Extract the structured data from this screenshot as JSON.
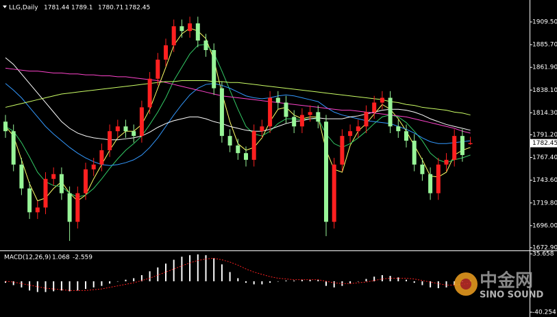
{
  "chart_data": [
    {
      "type": "candlestick",
      "title": "LLG,Daily",
      "up_color": "#ff2020",
      "down_color": "#98f598",
      "open": [
        1805,
        1795,
        1760,
        1735,
        1710,
        1715,
        1745,
        1750,
        1730,
        1700,
        1730,
        1755,
        1760,
        1775,
        1795,
        1800,
        1795,
        1790,
        1820,
        1850,
        1870,
        1885,
        1905,
        1900,
        1908,
        1890,
        1880,
        1840,
        1790,
        1780,
        1772,
        1765,
        1795,
        1800,
        1830,
        1825,
        1810,
        1800,
        1812,
        1815,
        1805,
        1700,
        1760,
        1790,
        1795,
        1800,
        1815,
        1825,
        1830,
        1800,
        1795,
        1785,
        1760,
        1750,
        1730,
        1760,
        1765,
        1790,
        1781.44
      ],
      "high": [
        1812,
        1802,
        1767,
        1742,
        1722,
        1752,
        1757,
        1757,
        1737,
        1737,
        1762,
        1767,
        1782,
        1802,
        1807,
        1807,
        1802,
        1827,
        1857,
        1877,
        1892,
        1912,
        1912,
        1915,
        1915,
        1897,
        1887,
        1847,
        1797,
        1787,
        1779,
        1802,
        1807,
        1837,
        1837,
        1832,
        1817,
        1819,
        1822,
        1822,
        1812,
        1767,
        1797,
        1802,
        1807,
        1822,
        1832,
        1837,
        1837,
        1807,
        1802,
        1792,
        1767,
        1757,
        1767,
        1772,
        1797,
        1797,
        1789.1
      ],
      "low": [
        1788,
        1753,
        1728,
        1703,
        1703,
        1708,
        1738,
        1723,
        1680,
        1693,
        1723,
        1748,
        1753,
        1768,
        1788,
        1788,
        1783,
        1783,
        1813,
        1843,
        1863,
        1878,
        1893,
        1893,
        1883,
        1873,
        1833,
        1783,
        1773,
        1765,
        1758,
        1758,
        1788,
        1793,
        1818,
        1803,
        1793,
        1793,
        1805,
        1798,
        1685,
        1693,
        1753,
        1783,
        1788,
        1793,
        1808,
        1818,
        1793,
        1788,
        1778,
        1753,
        1743,
        1723,
        1723,
        1753,
        1758,
        1763,
        1780.71
      ],
      "close": [
        1795,
        1760,
        1735,
        1710,
        1715,
        1745,
        1750,
        1730,
        1700,
        1730,
        1755,
        1760,
        1775,
        1795,
        1800,
        1795,
        1790,
        1820,
        1850,
        1870,
        1885,
        1905,
        1900,
        1908,
        1890,
        1880,
        1840,
        1790,
        1780,
        1772,
        1765,
        1795,
        1800,
        1830,
        1825,
        1810,
        1800,
        1812,
        1815,
        1805,
        1700,
        1760,
        1790,
        1795,
        1800,
        1815,
        1825,
        1830,
        1800,
        1795,
        1785,
        1760,
        1750,
        1730,
        1760,
        1765,
        1790,
        1770,
        1782.45
      ],
      "overlays": [
        {
          "color": "#ffff66",
          "values": [
            1800,
            1790,
            1765,
            1740,
            1722,
            1725,
            1735,
            1742,
            1730,
            1722,
            1728,
            1745,
            1760,
            1775,
            1788,
            1795,
            1795,
            1802,
            1818,
            1840,
            1862,
            1885,
            1897,
            1903,
            1900,
            1892,
            1870,
            1835,
            1805,
            1782,
            1775,
            1778,
            1788,
            1805,
            1818,
            1820,
            1812,
            1808,
            1810,
            1810,
            1775,
            1755,
            1752,
            1780,
            1795,
            1803,
            1813,
            1823,
            1818,
            1808,
            1795,
            1780,
            1765,
            1748,
            1747,
            1752,
            1770,
            1775,
            1778
          ]
        },
        {
          "color": "#33cc66",
          "values": [
            1800,
            1795,
            1783,
            1768,
            1752,
            1742,
            1738,
            1737,
            1730,
            1726,
            1728,
            1735,
            1745,
            1756,
            1766,
            1775,
            1782,
            1790,
            1802,
            1815,
            1830,
            1848,
            1862,
            1876,
            1885,
            1886,
            1877,
            1858,
            1838,
            1818,
            1800,
            1792,
            1790,
            1795,
            1803,
            1808,
            1808,
            1807,
            1808,
            1808,
            1792,
            1782,
            1778,
            1782,
            1788,
            1795,
            1803,
            1810,
            1812,
            1810,
            1804,
            1795,
            1785,
            1772,
            1765,
            1762,
            1765,
            1767,
            1770
          ]
        },
        {
          "color": "#3399ff",
          "values": [
            1845,
            1838,
            1830,
            1820,
            1810,
            1800,
            1792,
            1785,
            1778,
            1772,
            1767,
            1763,
            1760,
            1759,
            1760,
            1762,
            1765,
            1770,
            1778,
            1788,
            1800,
            1812,
            1823,
            1833,
            1840,
            1844,
            1845,
            1843,
            1840,
            1836,
            1832,
            1830,
            1829,
            1830,
            1832,
            1833,
            1832,
            1830,
            1828,
            1826,
            1820,
            1815,
            1812,
            1810,
            1808,
            1806,
            1805,
            1804,
            1803,
            1800,
            1797,
            1793,
            1788,
            1784,
            1782,
            1782,
            1783,
            1784,
            1785
          ]
        },
        {
          "color": "#ffffff",
          "values": [
            1872,
            1865,
            1855,
            1845,
            1835,
            1825,
            1815,
            1805,
            1798,
            1793,
            1790,
            1788,
            1787,
            1786,
            1786,
            1787,
            1788,
            1790,
            1794,
            1799,
            1803,
            1806,
            1808,
            1810,
            1810,
            1808,
            1805,
            1803,
            1800,
            1798,
            1796,
            1795,
            1795,
            1797,
            1800,
            1803,
            1805,
            1806,
            1808,
            1809,
            1808,
            1808,
            1808,
            1810,
            1811,
            1813,
            1815,
            1817,
            1818,
            1818,
            1817,
            1815,
            1812,
            1808,
            1805,
            1802,
            1800,
            1798,
            1796
          ]
        },
        {
          "color": "#ff44cc",
          "values": [
            1861,
            1860,
            1859,
            1858,
            1858,
            1857,
            1856,
            1856,
            1855,
            1855,
            1854,
            1854,
            1853,
            1853,
            1852,
            1852,
            1851,
            1850,
            1849,
            1848,
            1846,
            1844,
            1842,
            1840,
            1838,
            1836,
            1834,
            1832,
            1831,
            1830,
            1829,
            1828,
            1827,
            1826,
            1825,
            1824,
            1823,
            1822,
            1821,
            1820,
            1819,
            1818,
            1817,
            1817,
            1816,
            1815,
            1814,
            1813,
            1812,
            1811,
            1810,
            1808,
            1806,
            1804,
            1802,
            1800,
            1798,
            1795,
            1793
          ]
        },
        {
          "color": "#ccff66",
          "values": [
            1820,
            1822,
            1824,
            1826,
            1828,
            1830,
            1832,
            1834,
            1835,
            1836,
            1837,
            1838,
            1839,
            1840,
            1841,
            1842,
            1843,
            1844,
            1845,
            1846,
            1847,
            1847,
            1848,
            1848,
            1848,
            1848,
            1847,
            1847,
            1846,
            1846,
            1845,
            1844,
            1843,
            1842,
            1841,
            1840,
            1839,
            1838,
            1837,
            1836,
            1835,
            1834,
            1833,
            1832,
            1831,
            1830,
            1829,
            1828,
            1826,
            1825,
            1823,
            1822,
            1820,
            1819,
            1818,
            1817,
            1815,
            1814,
            1812
          ]
        }
      ],
      "ylim": [
        1670.0,
        1932.5
      ],
      "yticks": [
        {
          "value": 1909.5,
          "label": "1909.50"
        },
        {
          "value": 1885.7,
          "label": "1885.70"
        },
        {
          "value": 1861.9,
          "label": "1861.90"
        },
        {
          "value": 1838.1,
          "label": "1838.10"
        },
        {
          "value": 1814.3,
          "label": "1814.30"
        },
        {
          "value": 1791.2,
          "label": "1791.20"
        },
        {
          "value": 1767.4,
          "label": "1767.40"
        },
        {
          "value": 1743.6,
          "label": "1743.60"
        },
        {
          "value": 1719.8,
          "label": "1719.80"
        },
        {
          "value": 1696.0,
          "label": "1696.00"
        },
        {
          "value": 1672.9,
          "label": "1672.90"
        }
      ]
    },
    {
      "type": "macd",
      "title": "MACD(12,26,9)",
      "series": [
        {
          "color": "#ffffff",
          "style": "histogram",
          "values": [
            -2,
            -5,
            -8,
            -12,
            -14,
            -14,
            -13,
            -12,
            -13,
            -12,
            -10,
            -8,
            -6,
            -3,
            0,
            2,
            4,
            8,
            13,
            18,
            23,
            28,
            32,
            34,
            35,
            34,
            30,
            22,
            12,
            4,
            -2,
            -4,
            -4,
            -2,
            0,
            1,
            1,
            2,
            2,
            2,
            -6,
            -8,
            -6,
            -3,
            0,
            3,
            6,
            8,
            7,
            5,
            2,
            -2,
            -5,
            -8,
            -9,
            -8,
            -5,
            -1,
            1.068
          ]
        },
        {
          "color": "#ff2020",
          "style": "dotted",
          "values": [
            0,
            -1,
            -3,
            -5,
            -7,
            -9,
            -10,
            -11,
            -12,
            -12,
            -12,
            -11,
            -10,
            -8,
            -6,
            -4,
            -2,
            1,
            4,
            8,
            12,
            16,
            20,
            24,
            27,
            29,
            30,
            28,
            25,
            21,
            16,
            12,
            9,
            6,
            4,
            3,
            2,
            2,
            2,
            2,
            0,
            -2,
            -3,
            -3,
            -2,
            -1,
            1,
            3,
            4,
            4,
            4,
            3,
            1,
            -1,
            -3,
            -5,
            -5,
            -4,
            -2.559
          ]
        }
      ],
      "ylim": [
        -40.254,
        35.658
      ],
      "yticks": [
        35.658,
        -40.254
      ]
    }
  ],
  "watermark": {
    "logo": "中金网",
    "brand": "SINO SOUND"
  }
}
